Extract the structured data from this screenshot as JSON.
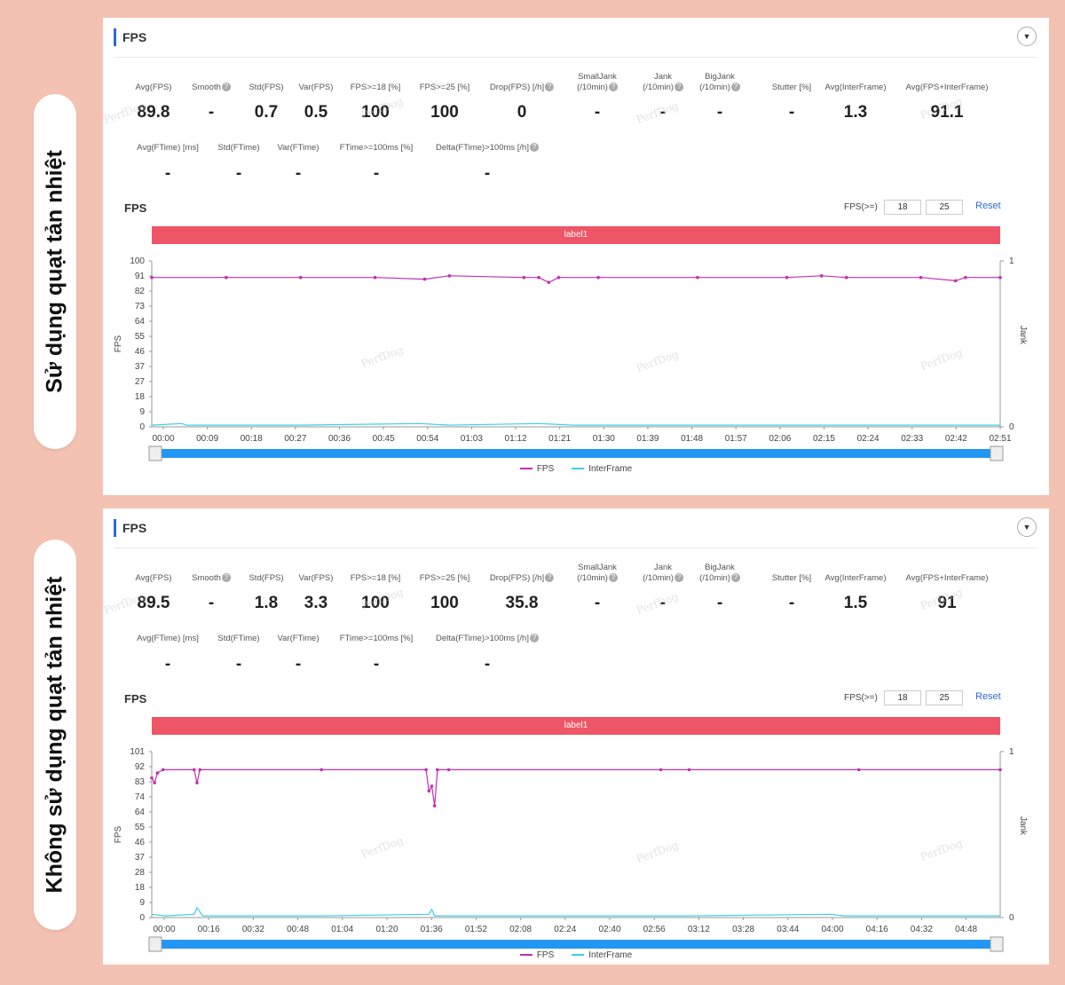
{
  "colors": {
    "fps": "#c42fb0",
    "interframe": "#3ad1e8",
    "label_bar": "#ee5566",
    "accent": "#2d6ad6",
    "background": "#f4c2b3"
  },
  "icons": [
    "help-icon",
    "collapse-icon"
  ],
  "watermark": "PerfDog",
  "panels": [
    {
      "side_label": "Sử dụng quạt tản nhiệt",
      "header": "FPS",
      "metrics_row1": [
        {
          "label": "Avg(FPS)",
          "value": "89.8",
          "help": false
        },
        {
          "label": "Smooth",
          "value": "-",
          "help": true
        },
        {
          "label": "Std(FPS)",
          "value": "0.7",
          "help": false
        },
        {
          "label": "Var(FPS)",
          "value": "0.5",
          "help": false
        },
        {
          "label": "FPS>=18 [%]",
          "value": "100",
          "help": false
        },
        {
          "label": "FPS>=25 [%]",
          "value": "100",
          "help": false
        },
        {
          "label": "Drop(FPS) [/h]",
          "value": "0",
          "help": true
        },
        {
          "label": "SmallJank\n(/10min)",
          "value": "-",
          "help": true
        },
        {
          "label": "Jank\n(/10min)",
          "value": "-",
          "help": true
        },
        {
          "label": "BigJank\n(/10min)",
          "value": "-",
          "help": true
        },
        {
          "label": "Stutter [%]",
          "value": "-",
          "help": false
        },
        {
          "label": "Avg(InterFrame)",
          "value": "1.3",
          "help": false
        },
        {
          "label": "Avg(FPS+InterFrame)",
          "value": "91.1",
          "help": false
        }
      ],
      "metrics_row2": [
        {
          "label": "Avg(FTime) [ms]",
          "value": "-",
          "help": false
        },
        {
          "label": "Std(FTime)",
          "value": "-",
          "help": false
        },
        {
          "label": "Var(FTime)",
          "value": "-",
          "help": false
        },
        {
          "label": "FTime>=100ms [%]",
          "value": "-",
          "help": false
        },
        {
          "label": "Delta(FTime)>100ms [/h]",
          "value": "-",
          "help": true
        }
      ],
      "chart_title": "FPS",
      "fps_filter_label": "FPS(>=)",
      "fps_filter_values": [
        "18",
        "25"
      ],
      "reset_label": "Reset",
      "label_bar": "label1",
      "legend": [
        "FPS",
        "InterFrame"
      ],
      "chart_data": {
        "type": "line",
        "x_ticks": [
          "00:00",
          "00:09",
          "00:18",
          "00:27",
          "00:36",
          "00:45",
          "00:54",
          "01:03",
          "01:12",
          "01:21",
          "01:30",
          "01:39",
          "01:48",
          "01:57",
          "02:06",
          "02:15",
          "02:24",
          "02:33",
          "02:42",
          "02:51"
        ],
        "x_range_seconds": [
          0,
          171
        ],
        "y_ticks": [
          "100",
          "91",
          "82",
          "73",
          "64",
          "55",
          "46",
          "37",
          "27",
          "18",
          "9",
          "0"
        ],
        "ylim": [
          0,
          100
        ],
        "ylabel": "FPS",
        "y2label": "Jank",
        "y2_ticks": [
          "1",
          "0"
        ],
        "series": [
          {
            "name": "FPS",
            "points": [
              [
                0,
                90
              ],
              [
                15,
                90
              ],
              [
                30,
                90
              ],
              [
                45,
                90
              ],
              [
                55,
                89
              ],
              [
                60,
                91
              ],
              [
                75,
                90
              ],
              [
                78,
                90
              ],
              [
                80,
                87
              ],
              [
                82,
                90
              ],
              [
                90,
                90
              ],
              [
                110,
                90
              ],
              [
                128,
                90
              ],
              [
                135,
                91
              ],
              [
                140,
                90
              ],
              [
                155,
                90
              ],
              [
                162,
                88
              ],
              [
                164,
                90
              ],
              [
                171,
                90
              ]
            ]
          },
          {
            "name": "InterFrame",
            "points": [
              [
                0,
                1
              ],
              [
                6,
                2
              ],
              [
                7,
                1
              ],
              [
                30,
                1
              ],
              [
                54,
                2
              ],
              [
                60,
                1
              ],
              [
                78,
                2
              ],
              [
                85,
                1
              ],
              [
                171,
                1
              ]
            ]
          }
        ]
      }
    },
    {
      "side_label": "Không sử dụng quạt tản nhiệt",
      "header": "FPS",
      "metrics_row1": [
        {
          "label": "Avg(FPS)",
          "value": "89.5",
          "help": false
        },
        {
          "label": "Smooth",
          "value": "-",
          "help": true
        },
        {
          "label": "Std(FPS)",
          "value": "1.8",
          "help": false
        },
        {
          "label": "Var(FPS)",
          "value": "3.3",
          "help": false
        },
        {
          "label": "FPS>=18 [%]",
          "value": "100",
          "help": false
        },
        {
          "label": "FPS>=25 [%]",
          "value": "100",
          "help": false
        },
        {
          "label": "Drop(FPS) [/h]",
          "value": "35.8",
          "help": true
        },
        {
          "label": "SmallJank\n(/10min)",
          "value": "-",
          "help": true
        },
        {
          "label": "Jank\n(/10min)",
          "value": "-",
          "help": true
        },
        {
          "label": "BigJank\n(/10min)",
          "value": "-",
          "help": true
        },
        {
          "label": "Stutter [%]",
          "value": "-",
          "help": false
        },
        {
          "label": "Avg(InterFrame)",
          "value": "1.5",
          "help": false
        },
        {
          "label": "Avg(FPS+InterFrame)",
          "value": "91",
          "help": false
        }
      ],
      "metrics_row2": [
        {
          "label": "Avg(FTime) [ms]",
          "value": "-",
          "help": false
        },
        {
          "label": "Std(FTime)",
          "value": "-",
          "help": false
        },
        {
          "label": "Var(FTime)",
          "value": "-",
          "help": false
        },
        {
          "label": "FTime>=100ms [%]",
          "value": "-",
          "help": false
        },
        {
          "label": "Delta(FTime)>100ms [/h]",
          "value": "-",
          "help": true
        }
      ],
      "chart_title": "FPS",
      "fps_filter_label": "FPS(>=)",
      "fps_filter_values": [
        "18",
        "25"
      ],
      "reset_label": "Reset",
      "label_bar": "label1",
      "legend": [
        "FPS",
        "InterFrame"
      ],
      "chart_data": {
        "type": "line",
        "x_ticks": [
          "00:00",
          "00:16",
          "00:32",
          "00:48",
          "01:04",
          "01:20",
          "01:36",
          "01:52",
          "02:08",
          "02:24",
          "02:40",
          "02:56",
          "03:12",
          "03:28",
          "03:44",
          "04:00",
          "04:16",
          "04:32",
          "04:48"
        ],
        "x_range_seconds": [
          0,
          300
        ],
        "y_ticks": [
          "101",
          "92",
          "83",
          "74",
          "64",
          "55",
          "46",
          "37",
          "28",
          "18",
          "9",
          "0"
        ],
        "ylim": [
          0,
          101
        ],
        "ylabel": "FPS",
        "y2label": "Jank",
        "y2_ticks": [
          "1",
          "0"
        ],
        "series": [
          {
            "name": "FPS",
            "points": [
              [
                0,
                85
              ],
              [
                1,
                82
              ],
              [
                2,
                88
              ],
              [
                4,
                90
              ],
              [
                15,
                90
              ],
              [
                16,
                82
              ],
              [
                17,
                90
              ],
              [
                60,
                90
              ],
              [
                97,
                90
              ],
              [
                98,
                77
              ],
              [
                99,
                80
              ],
              [
                100,
                68
              ],
              [
                101,
                90
              ],
              [
                105,
                90
              ],
              [
                180,
                90
              ],
              [
                190,
                90
              ],
              [
                250,
                90
              ],
              [
                300,
                90
              ]
            ]
          },
          {
            "name": "InterFrame",
            "points": [
              [
                0,
                2
              ],
              [
                5,
                1
              ],
              [
                15,
                2
              ],
              [
                16,
                6
              ],
              [
                18,
                1
              ],
              [
                60,
                1
              ],
              [
                98,
                2
              ],
              [
                99,
                5
              ],
              [
                100,
                1
              ],
              [
                150,
                1
              ],
              [
                190,
                1
              ],
              [
                240,
                2
              ],
              [
                245,
                1
              ],
              [
                300,
                1
              ]
            ]
          }
        ]
      }
    }
  ]
}
